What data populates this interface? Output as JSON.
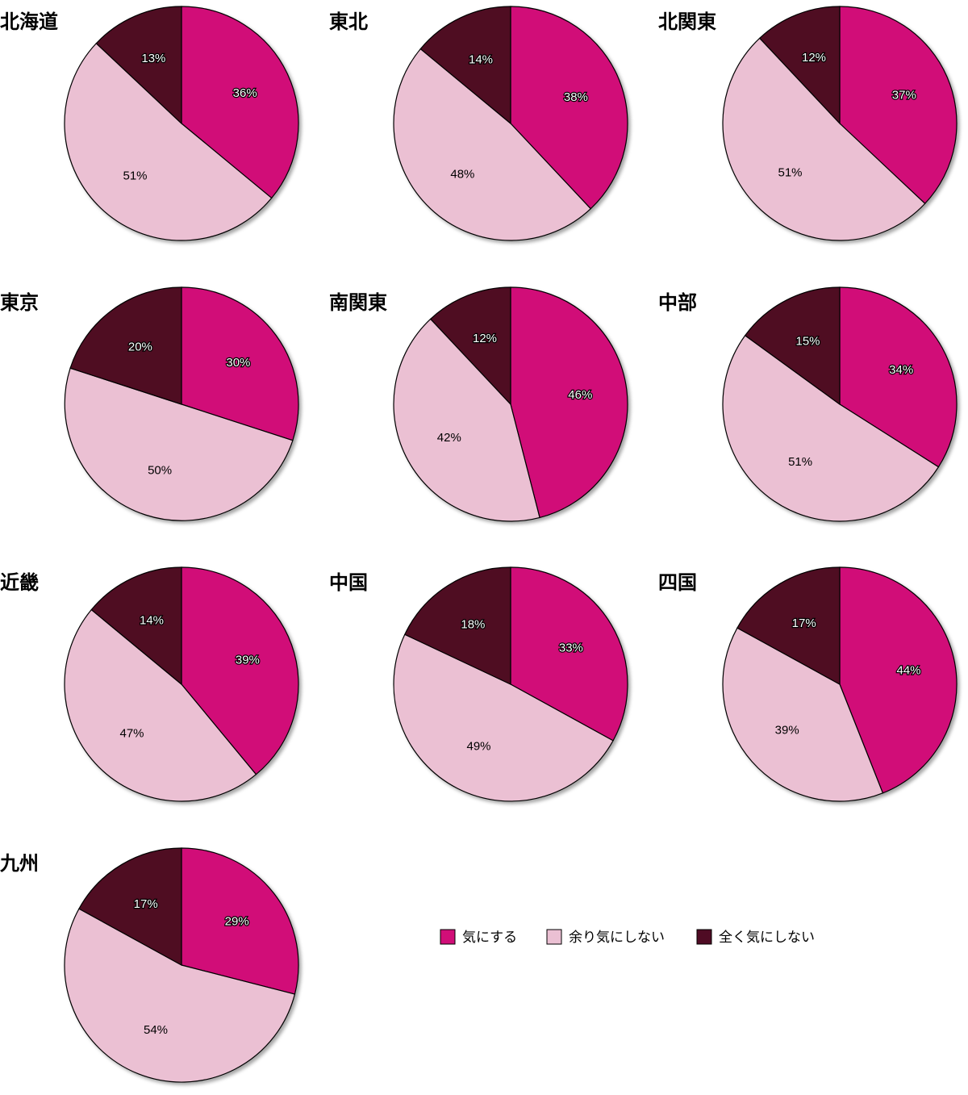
{
  "legend": [
    {
      "label": "気にする",
      "color": "#d10e78"
    },
    {
      "label": "余り気にしない",
      "color": "#ebc0d3"
    },
    {
      "label": "全く気にしない",
      "color": "#4f0b24"
    }
  ],
  "chart_data": [
    {
      "type": "pie",
      "title": "北海道",
      "categories": [
        "気にする",
        "余り気にしない",
        "全く気にしない"
      ],
      "values": [
        36,
        51,
        13
      ]
    },
    {
      "type": "pie",
      "title": "東北",
      "categories": [
        "気にする",
        "余り気にしない",
        "全く気にしない"
      ],
      "values": [
        38,
        48,
        14
      ]
    },
    {
      "type": "pie",
      "title": "北関東",
      "categories": [
        "気にする",
        "余り気にしない",
        "全く気にしない"
      ],
      "values": [
        37,
        51,
        12
      ]
    },
    {
      "type": "pie",
      "title": "東京",
      "categories": [
        "気にする",
        "余り気にしない",
        "全く気にしない"
      ],
      "values": [
        30,
        50,
        20
      ]
    },
    {
      "type": "pie",
      "title": "南関東",
      "categories": [
        "気にする",
        "余り気にしない",
        "全く気にしない"
      ],
      "values": [
        46,
        42,
        12
      ]
    },
    {
      "type": "pie",
      "title": "中部",
      "categories": [
        "気にする",
        "余り気にしない",
        "全く気にしない"
      ],
      "values": [
        34,
        51,
        15
      ]
    },
    {
      "type": "pie",
      "title": "近畿",
      "categories": [
        "気にする",
        "余り気にしない",
        "全く気にしない"
      ],
      "values": [
        39,
        47,
        14
      ]
    },
    {
      "type": "pie",
      "title": "中国",
      "categories": [
        "気にする",
        "余り気にしない",
        "全く気にしない"
      ],
      "values": [
        33,
        49,
        18
      ]
    },
    {
      "type": "pie",
      "title": "四国",
      "categories": [
        "気にする",
        "余り気にしない",
        "全く気にしない"
      ],
      "values": [
        44,
        39,
        17
      ]
    },
    {
      "type": "pie",
      "title": "九州",
      "categories": [
        "気にする",
        "余り気にしない",
        "全く気にしない"
      ],
      "values": [
        29,
        54,
        17
      ]
    }
  ]
}
